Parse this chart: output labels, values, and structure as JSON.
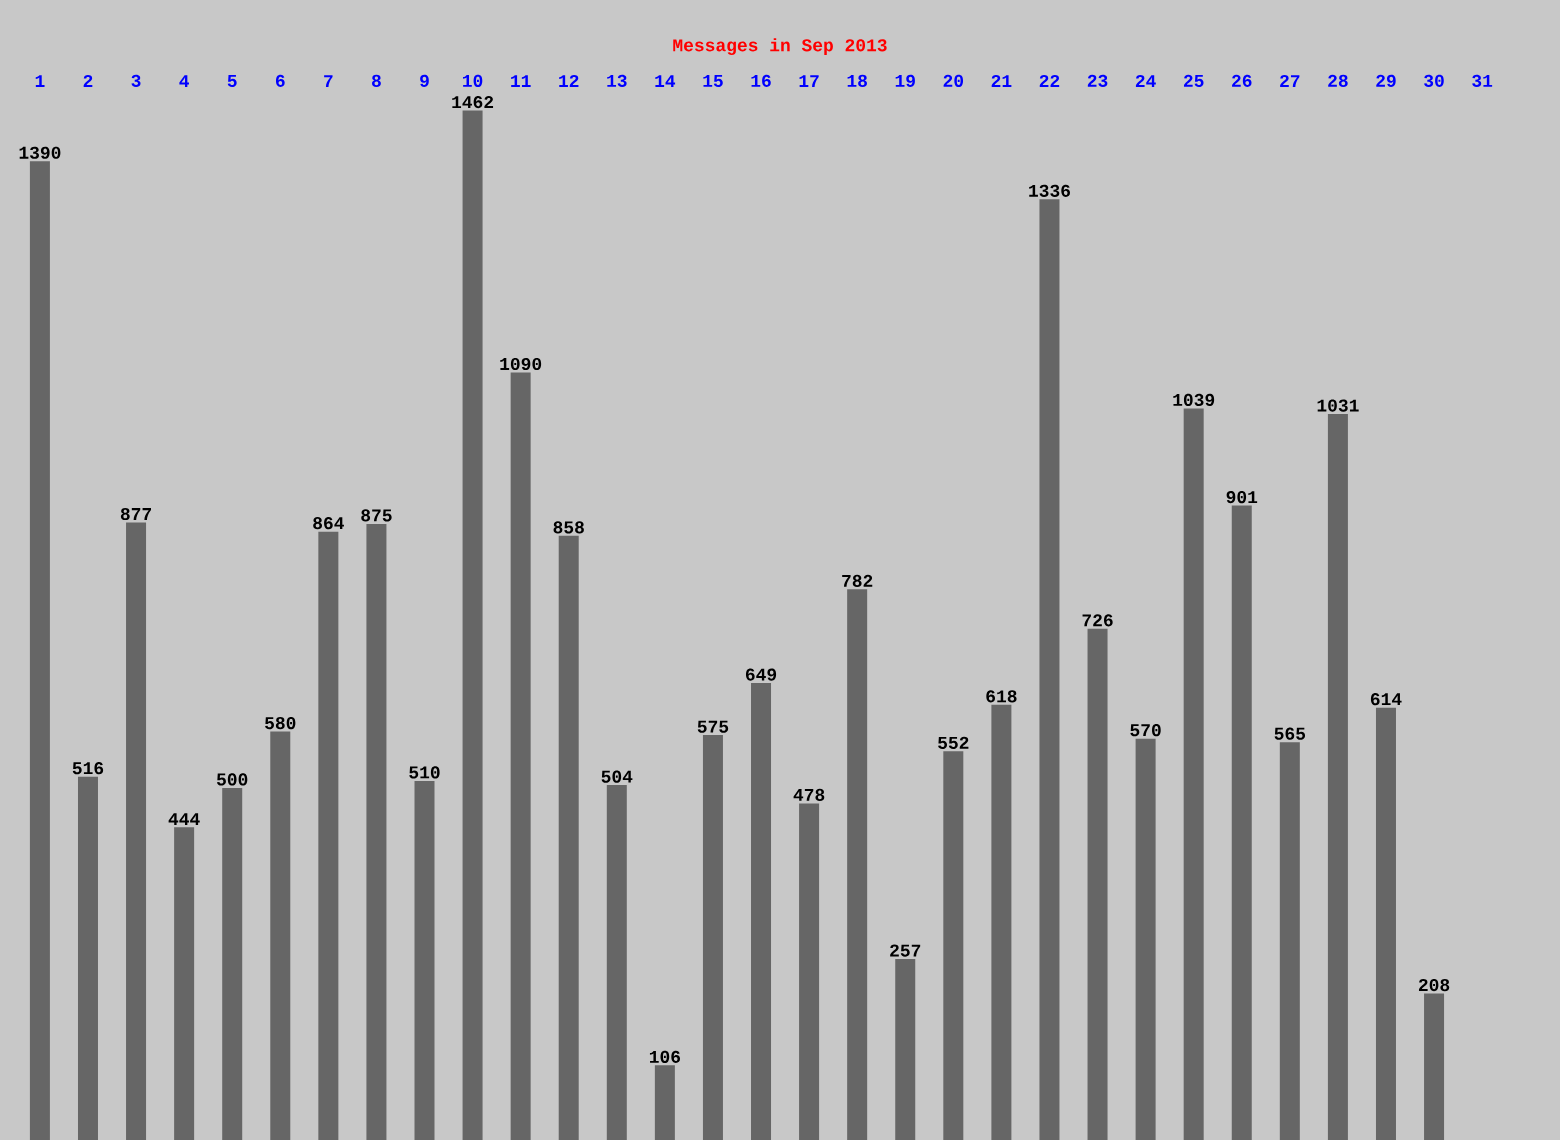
{
  "chart_data": {
    "type": "bar",
    "title": "Messages in Sep 2013",
    "categories": [
      "1",
      "2",
      "3",
      "4",
      "5",
      "6",
      "7",
      "8",
      "9",
      "10",
      "11",
      "12",
      "13",
      "14",
      "15",
      "16",
      "17",
      "18",
      "19",
      "20",
      "21",
      "22",
      "23",
      "24",
      "25",
      "26",
      "27",
      "28",
      "29",
      "30",
      "31"
    ],
    "values": [
      1390,
      516,
      877,
      444,
      500,
      580,
      864,
      875,
      510,
      1462,
      1090,
      858,
      504,
      106,
      575,
      649,
      478,
      782,
      257,
      552,
      618,
      1336,
      726,
      570,
      1039,
      901,
      565,
      1031,
      614,
      208,
      null
    ],
    "color": "#666666",
    "data_labels": true
  }
}
